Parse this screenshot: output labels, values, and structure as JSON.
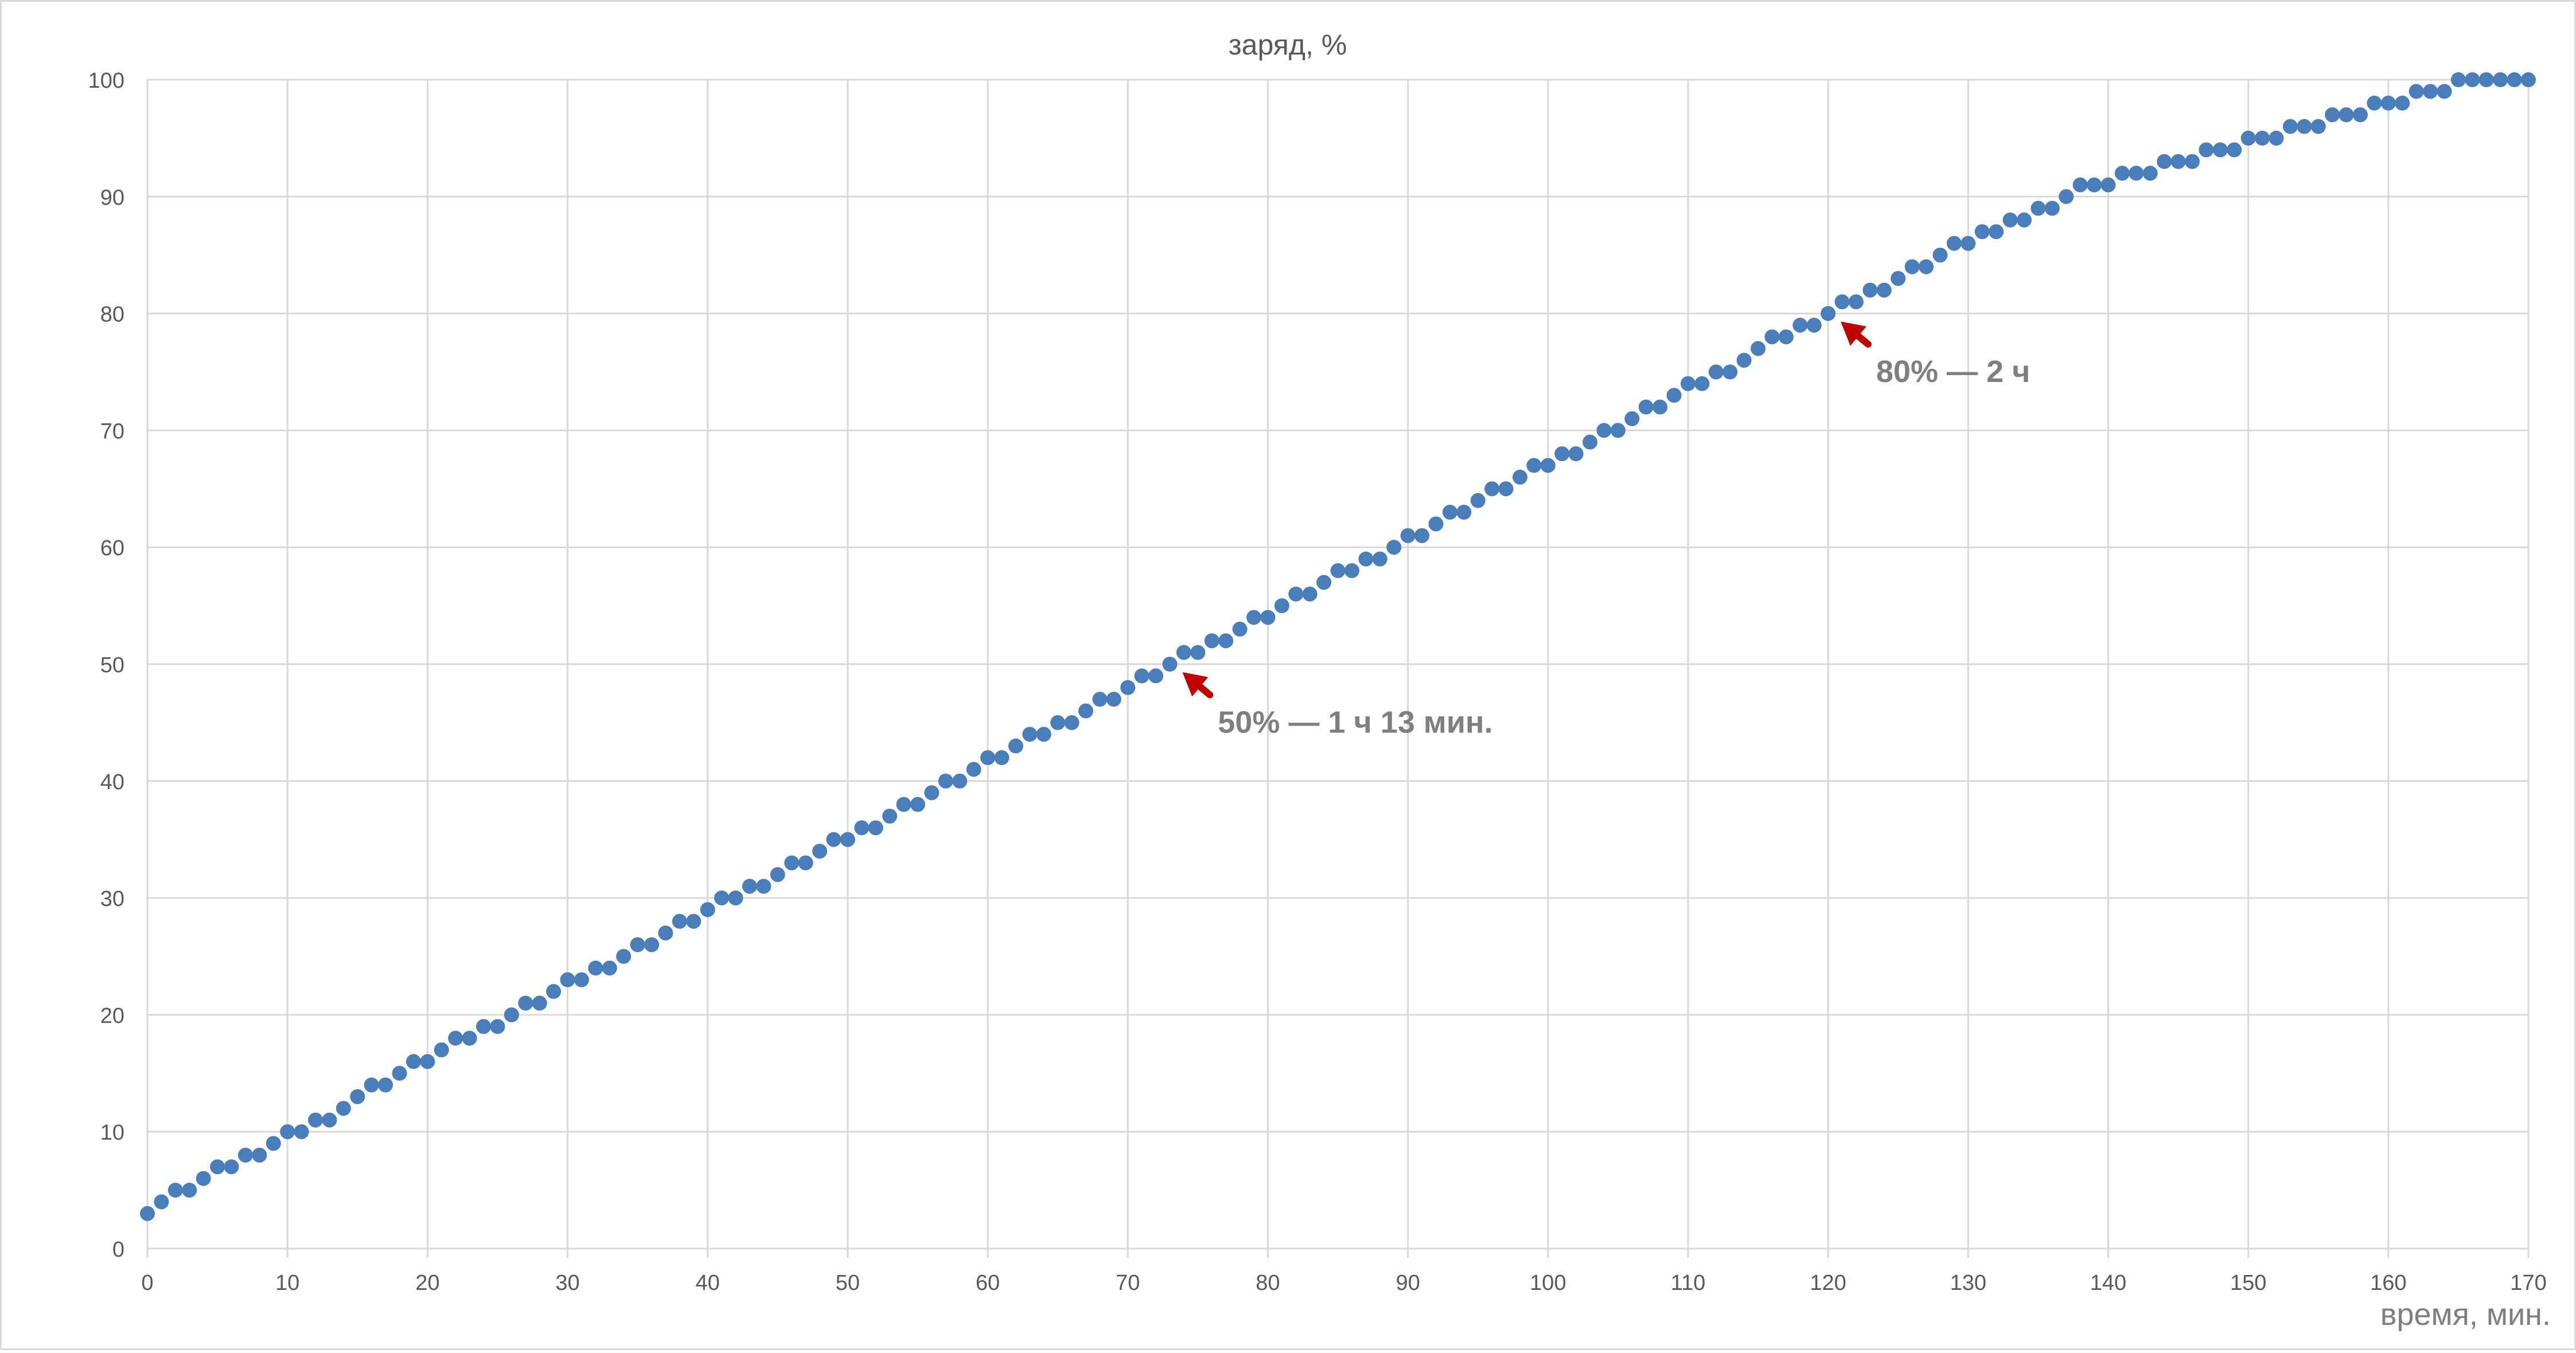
{
  "chart_data": {
    "type": "scatter",
    "title": "заряд, %",
    "xlabel": "время, мин.",
    "ylabel": "",
    "xlim": [
      0,
      170
    ],
    "ylim": [
      0,
      100
    ],
    "xticks": [
      0,
      10,
      20,
      30,
      40,
      50,
      60,
      70,
      80,
      90,
      100,
      110,
      120,
      130,
      140,
      150,
      160,
      170
    ],
    "yticks": [
      0,
      10,
      20,
      30,
      40,
      50,
      60,
      70,
      80,
      90,
      100
    ],
    "grid": true,
    "legend": "none",
    "colors": {
      "marker": "#4a7ebb",
      "arrow": "#c00000",
      "grid": "#d9d9d9",
      "tick_text": "#595959",
      "annotation_text": "#7f7f7f"
    },
    "series": [
      {
        "x": [
          0,
          1,
          2,
          3,
          4,
          5,
          6,
          7,
          8,
          9,
          10,
          11,
          12,
          13,
          14,
          15,
          16,
          17,
          18,
          19,
          20,
          21,
          22,
          23,
          24,
          25,
          26,
          27,
          28,
          29,
          30,
          31,
          32,
          33,
          34,
          35,
          36,
          37,
          38,
          39,
          40,
          41,
          42,
          43,
          44,
          45,
          46,
          47,
          48,
          49,
          50,
          51,
          52,
          53,
          54,
          55,
          56,
          57,
          58,
          59,
          60,
          61,
          62,
          63,
          64,
          65,
          66,
          67,
          68,
          69,
          70,
          71,
          72,
          73,
          74,
          75,
          76,
          77,
          78,
          79,
          80,
          81,
          82,
          83,
          84,
          85,
          86,
          87,
          88,
          89,
          90,
          91,
          92,
          93,
          94,
          95,
          96,
          97,
          98,
          99,
          100,
          101,
          102,
          103,
          104,
          105,
          106,
          107,
          108,
          109,
          110,
          111,
          112,
          113,
          114,
          115,
          116,
          117,
          118,
          119,
          120,
          121,
          122,
          123,
          124,
          125,
          126,
          127,
          128,
          129,
          130,
          131,
          132,
          133,
          134,
          135,
          136,
          137,
          138,
          139,
          140,
          141,
          142,
          143,
          144,
          145,
          146,
          147,
          148,
          149,
          150,
          151,
          152,
          153,
          154,
          155,
          156,
          157,
          158,
          159,
          160,
          161,
          162,
          163,
          164,
          165,
          166,
          167,
          168,
          169,
          170
        ],
        "y": [
          3,
          4,
          5,
          5,
          6,
          7,
          7,
          8,
          8,
          9,
          10,
          10,
          11,
          11,
          12,
          13,
          14,
          14,
          15,
          16,
          16,
          17,
          18,
          18,
          19,
          19,
          20,
          21,
          21,
          22,
          23,
          23,
          24,
          24,
          25,
          26,
          26,
          27,
          28,
          28,
          29,
          30,
          30,
          31,
          31,
          32,
          33,
          33,
          34,
          35,
          35,
          36,
          36,
          37,
          38,
          38,
          39,
          40,
          40,
          41,
          42,
          42,
          43,
          44,
          44,
          45,
          45,
          46,
          47,
          47,
          48,
          49,
          49,
          50,
          51,
          51,
          52,
          52,
          53,
          54,
          54,
          55,
          56,
          56,
          57,
          58,
          58,
          59,
          59,
          60,
          61,
          61,
          62,
          63,
          63,
          64,
          65,
          65,
          66,
          67,
          67,
          68,
          68,
          69,
          70,
          70,
          71,
          72,
          72,
          73,
          74,
          74,
          75,
          75,
          76,
          77,
          78,
          78,
          79,
          79,
          80,
          81,
          81,
          82,
          82,
          83,
          84,
          84,
          85,
          86,
          86,
          87,
          87,
          88,
          88,
          89,
          89,
          90,
          91,
          91,
          91,
          92,
          92,
          92,
          93,
          93,
          93,
          94,
          94,
          94,
          95,
          95,
          95,
          96,
          96,
          96,
          97,
          97,
          97,
          98,
          98,
          98,
          99,
          99,
          99,
          100,
          100,
          100,
          100,
          100,
          100
        ]
      }
    ],
    "annotations": [
      {
        "text": "50% — 1 ч 13 мин.",
        "x": 73,
        "y": 50
      },
      {
        "text": "80% — 2 ч",
        "x": 120,
        "y": 80
      }
    ]
  }
}
